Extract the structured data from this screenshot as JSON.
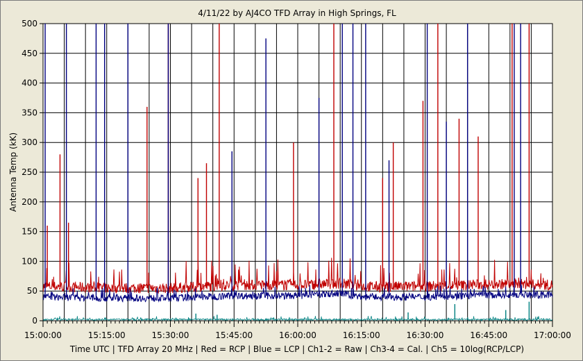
{
  "chart_data": {
    "type": "line",
    "title": "4/11/22  by  AJ4CO TFD Array  in  High Springs, FL",
    "xlabel": "Time UTC | TFD Array 20 MHz | Red = RCP | Blue = LCP | Ch1-2 = Raw | Ch3-4 = Cal. | Ch5 = 10log(RCP/LCP)",
    "ylabel": "Antenna Temp (kK)",
    "ylim": [
      0,
      500
    ],
    "yticks": [
      "0",
      "50",
      "100",
      "150",
      "200",
      "250",
      "300",
      "350",
      "400",
      "450",
      "500"
    ],
    "xlim_minutes": [
      0,
      120
    ],
    "xticks": [
      "15:00:00",
      "15:15:00",
      "15:30:00",
      "15:45:00",
      "16:00:00",
      "16:15:00",
      "16:30:00",
      "16:45:00",
      "17:00:00"
    ],
    "grid": true,
    "colors": {
      "rcp": "#c00000",
      "lcp": "#00007f",
      "ratio": "#008080",
      "grid": "#000000",
      "plot_bg": "#ffffff",
      "frame_bg": "#ece9d8"
    },
    "series": [
      {
        "name": "Red = RCP",
        "baseline": {
          "x_minutes": [
            0,
            15,
            30,
            45,
            60,
            70,
            75,
            80,
            90,
            100,
            110,
            120
          ],
          "y": [
            58,
            55,
            55,
            60,
            60,
            63,
            58,
            57,
            58,
            60,
            62,
            60
          ]
        },
        "spikes": {
          "x_minutes": [
            1,
            4,
            6,
            24.5,
            29.5,
            36.5,
            38.5,
            41.5,
            59,
            68.5,
            80,
            82.5,
            89.5,
            93,
            98,
            102.5,
            110.5,
            114.5
          ],
          "y": [
            160,
            280,
            165,
            360,
            500,
            240,
            265,
            500,
            300,
            500,
            240,
            300,
            370,
            500,
            340,
            310,
            500,
            500
          ]
        }
      },
      {
        "name": "Blue = LCP",
        "baseline": {
          "x_minutes": [
            0,
            15,
            30,
            45,
            60,
            70,
            75,
            80,
            90,
            100,
            110,
            120
          ],
          "y": [
            40,
            38,
            38,
            42,
            42,
            46,
            40,
            40,
            40,
            42,
            44,
            43
          ]
        },
        "spikes": {
          "x_minutes": [
            0.5,
            5.5,
            12.5,
            14.5,
            20,
            29.5,
            44.5,
            52.5,
            65,
            70.5,
            73,
            76,
            81.5,
            90.5,
            95,
            100,
            111,
            112.5
          ],
          "y": [
            500,
            500,
            500,
            500,
            500,
            500,
            285,
            475,
            375,
            500,
            500,
            500,
            270,
            500,
            335,
            500,
            500,
            500
          ]
        }
      },
      {
        "name": "Ch5 = 10log(RCP/LCP)",
        "baseline": {
          "x_minutes": [
            0,
            30,
            60,
            90,
            120
          ],
          "y": [
            2,
            2,
            2,
            2,
            2
          ]
        },
        "spikes": {
          "x_minutes": [
            36,
            41,
            86,
            97,
            109,
            114.5
          ],
          "y": [
            12,
            10,
            14,
            28,
            18,
            32
          ]
        }
      }
    ]
  }
}
